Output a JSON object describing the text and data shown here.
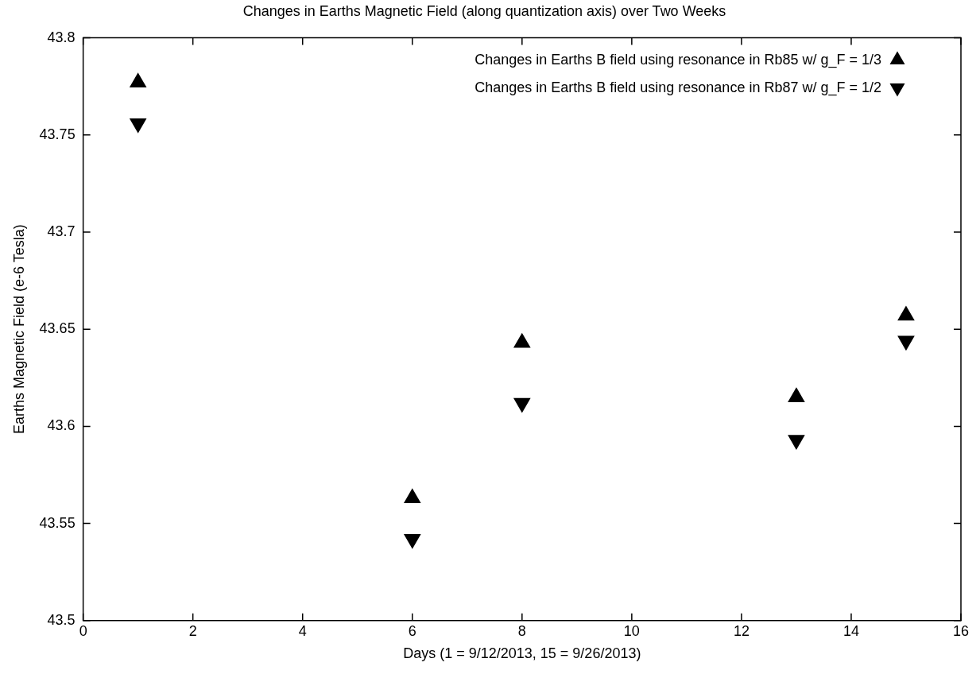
{
  "chart_data": {
    "type": "scatter",
    "title": "Changes in Earths Magnetic Field (along quantization axis) over Two Weeks",
    "xlabel": "Days (1 = 9/12/2013, 15 = 9/26/2013)",
    "ylabel": "Earths Magnetic Field (e-6 Tesla)",
    "x": [
      1,
      6,
      8,
      13,
      15
    ],
    "series": [
      {
        "name": "Changes in Earths B field using resonance in Rb85 w/ g_F = 1/3",
        "color": "#000000",
        "values": [
          43.777,
          43.563,
          43.643,
          43.615,
          43.657
        ]
      },
      {
        "name": "Changes in Earths B field using resonance in Rb87 w/ g_F = 1/2",
        "color": "#000000",
        "values": [
          43.756,
          43.542,
          43.612,
          43.593,
          43.644
        ]
      }
    ],
    "xlim": [
      0,
      16
    ],
    "xticks": [
      0,
      2,
      4,
      6,
      8,
      10,
      12,
      14,
      16
    ],
    "ylim": [
      43.5,
      43.8
    ],
    "yticks": [
      43.5,
      43.55,
      43.6,
      43.65,
      43.7,
      43.75,
      43.8
    ],
    "legend": "top right",
    "marker": "triangle"
  }
}
